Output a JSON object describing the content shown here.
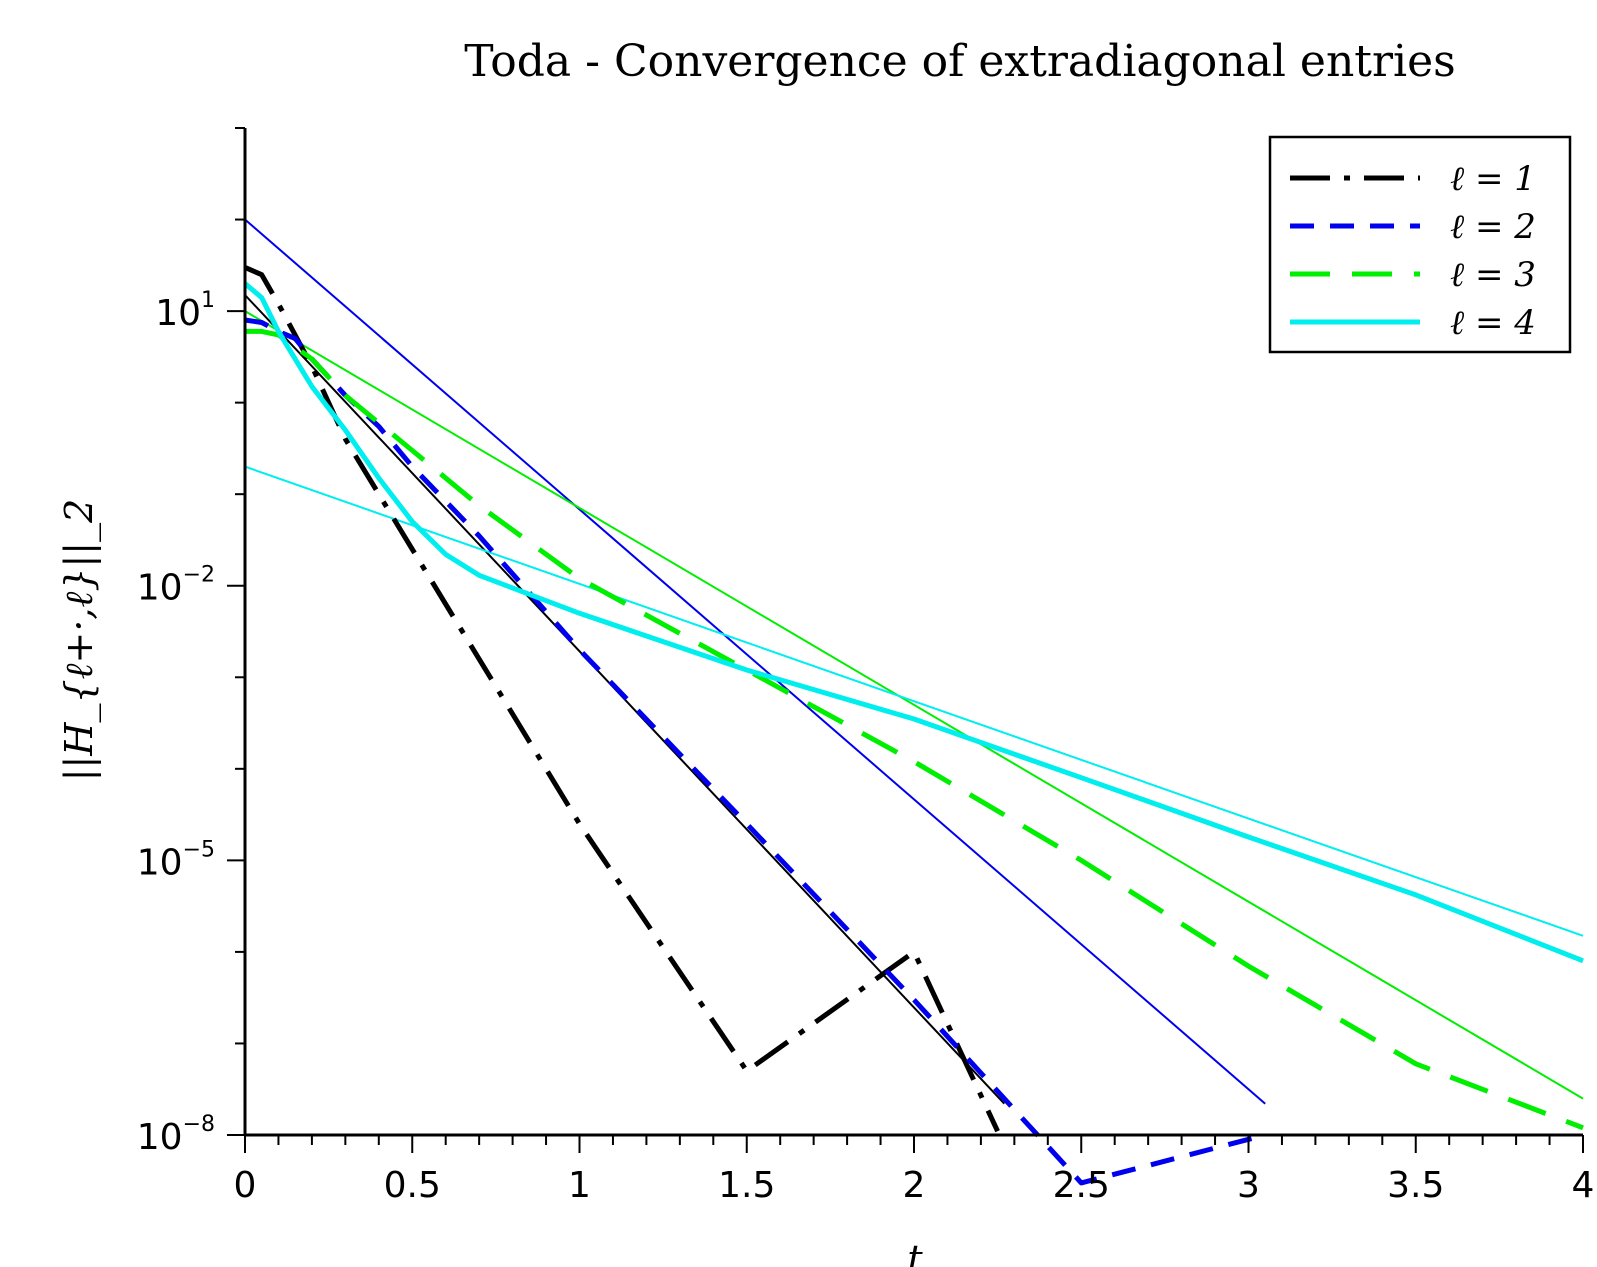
{
  "chart_data": {
    "type": "line",
    "title": "Toda - Convergence of extradiagonal entries",
    "xlabel": "t",
    "ylabel": "||H_{ℓ+·,ℓ}||_2",
    "xlim": [
      0,
      4
    ],
    "ylim": [
      1e-08,
      1000
    ],
    "yscale": "log",
    "grid": false,
    "legend_position": "top-right",
    "x_ticks": [
      "0",
      "0.5",
      "1",
      "1.5",
      "2",
      "2.5",
      "3",
      "3.5",
      "4"
    ],
    "x_tick_values": [
      0,
      0.5,
      1,
      1.5,
      2,
      2.5,
      3,
      3.5,
      4
    ],
    "y_ticks": [
      {
        "base": "10",
        "exp": "1",
        "value": 10
      },
      {
        "base": "10",
        "exp": "−2",
        "value": 0.01
      },
      {
        "base": "10",
        "exp": "−5",
        "value": 1e-05
      },
      {
        "base": "10",
        "exp": "−8",
        "value": 1e-08
      }
    ],
    "series": [
      {
        "name": "ℓ = 1",
        "style": "dashdot",
        "color": "#000000",
        "width": 5,
        "points": [
          [
            0,
            30
          ],
          [
            0.05,
            25
          ],
          [
            0.1,
            12
          ],
          [
            0.2,
            2.5
          ],
          [
            0.3,
            0.4
          ],
          [
            0.5,
            0.025
          ],
          [
            1.0,
            2.5e-05
          ],
          [
            1.5,
            5e-08
          ],
          [
            2.0,
            1e-06
          ],
          [
            2.25,
            1.1e-08
          ]
        ]
      },
      {
        "name": "ℓ = 2",
        "style": "dashed",
        "color": "#0000ee",
        "width": 5,
        "points": [
          [
            0,
            8
          ],
          [
            0.05,
            7.5
          ],
          [
            0.1,
            6
          ],
          [
            0.15,
            5
          ],
          [
            0.2,
            3
          ],
          [
            0.3,
            1.2
          ],
          [
            0.4,
            0.55
          ],
          [
            0.5,
            0.2
          ],
          [
            0.7,
            0.035
          ],
          [
            1.0,
            0.002
          ],
          [
            1.5,
            2.5e-05
          ],
          [
            2.0,
            3e-07
          ],
          [
            2.5,
            3e-09
          ],
          [
            3.05,
            1e-08
          ]
        ]
      },
      {
        "name": "ℓ = 3",
        "style": "longdash",
        "color": "#00ee00",
        "width": 5,
        "points": [
          [
            0,
            6
          ],
          [
            0.05,
            6
          ],
          [
            0.1,
            5.5
          ],
          [
            0.2,
            3
          ],
          [
            0.3,
            1.2
          ],
          [
            0.5,
            0.3
          ],
          [
            0.7,
            0.075
          ],
          [
            1.0,
            0.012
          ],
          [
            1.5,
            0.0012
          ],
          [
            2.0,
            0.00012
          ],
          [
            2.5,
            1e-05
          ],
          [
            3.0,
            7e-07
          ],
          [
            3.5,
            6e-08
          ],
          [
            4.0,
            1.2e-08
          ]
        ]
      },
      {
        "name": "ℓ = 4",
        "style": "solid",
        "color": "#00eeee",
        "width": 5,
        "points": [
          [
            0,
            20
          ],
          [
            0.05,
            14
          ],
          [
            0.1,
            6
          ],
          [
            0.2,
            1.5
          ],
          [
            0.3,
            0.5
          ],
          [
            0.4,
            0.15
          ],
          [
            0.5,
            0.05
          ],
          [
            0.6,
            0.022
          ],
          [
            0.7,
            0.013
          ],
          [
            1.0,
            0.005
          ],
          [
            1.5,
            0.0012
          ],
          [
            2.0,
            0.00035
          ],
          [
            2.5,
            8e-05
          ],
          [
            3.0,
            1.8e-05
          ],
          [
            3.5,
            4.2e-06
          ],
          [
            4.0,
            8e-07
          ]
        ]
      }
    ],
    "reference_lines": [
      {
        "color": "#000000",
        "width": 2,
        "points": [
          [
            0,
            15
          ],
          [
            2.27,
            2.2e-08
          ]
        ]
      },
      {
        "color": "#0000ee",
        "width": 2,
        "points": [
          [
            0,
            100
          ],
          [
            3.05,
            2.2e-08
          ]
        ]
      },
      {
        "color": "#00ee00",
        "width": 2,
        "points": [
          [
            0,
            10
          ],
          [
            4.0,
            2.5e-08
          ]
        ]
      },
      {
        "color": "#00eeee",
        "width": 2,
        "points": [
          [
            0,
            0.2
          ],
          [
            4.0,
            1.5e-06
          ]
        ]
      }
    ]
  }
}
